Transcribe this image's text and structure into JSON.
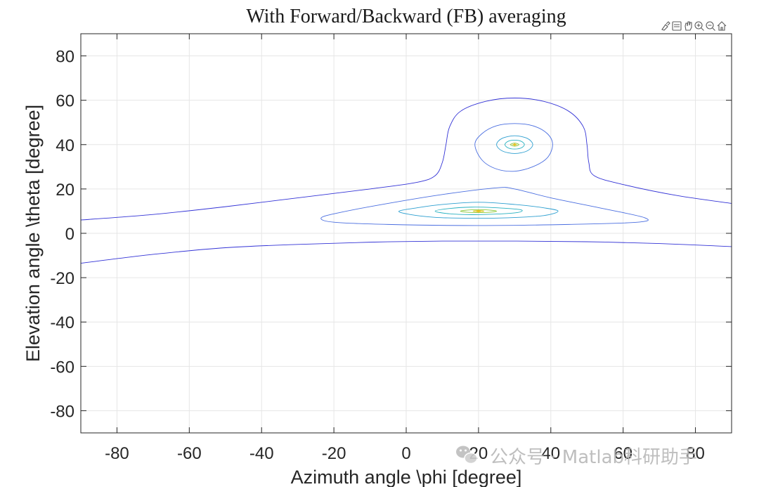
{
  "chart_data": {
    "type": "contour",
    "title": "With Forward/Backward (FB) averaging",
    "xlabel": "Azimuth angle \\phi [degree]",
    "ylabel": "Elevation angle \\theta [degree]",
    "xlim": [
      -90,
      90
    ],
    "ylim": [
      -90,
      90
    ],
    "xticks": [
      -80,
      -60,
      -40,
      -20,
      0,
      20,
      40,
      60,
      80
    ],
    "yticks": [
      -80,
      -60,
      -40,
      -20,
      0,
      20,
      40,
      60,
      80
    ],
    "grid": true,
    "peaks": [
      {
        "azimuth": 20,
        "elevation": 10
      },
      {
        "azimuth": 30,
        "elevation": 40
      }
    ],
    "contours": [
      {
        "level": "outer-upper",
        "color": "#3333d6",
        "points": [
          [
            -90,
            6
          ],
          [
            -70,
            8.5
          ],
          [
            -50,
            12
          ],
          [
            -30,
            16
          ],
          [
            -10,
            20
          ],
          [
            3,
            23
          ],
          [
            8,
            26
          ],
          [
            10,
            32
          ],
          [
            11,
            40
          ],
          [
            12,
            48
          ],
          [
            15,
            55
          ],
          [
            22,
            59.5
          ],
          [
            30,
            61
          ],
          [
            38,
            59.5
          ],
          [
            45,
            55
          ],
          [
            49,
            48
          ],
          [
            50,
            40
          ],
          [
            50.5,
            32
          ],
          [
            52,
            26
          ],
          [
            60,
            22
          ],
          [
            75,
            17
          ],
          [
            90,
            13.5
          ]
        ]
      },
      {
        "level": "outer-lower",
        "color": "#3333d6",
        "points": [
          [
            -90,
            -13.5
          ],
          [
            -70,
            -9.5
          ],
          [
            -50,
            -6.5
          ],
          [
            -30,
            -5
          ],
          [
            -10,
            -4
          ],
          [
            10,
            -3.5
          ],
          [
            30,
            -3.5
          ],
          [
            50,
            -3.8
          ],
          [
            70,
            -4.6
          ],
          [
            90,
            -6
          ]
        ]
      },
      {
        "level": "ring1",
        "color": "#4a6ee0",
        "closed": true,
        "points": [
          [
            -23.5,
            7
          ],
          [
            -18,
            9.5
          ],
          [
            -5,
            13.5
          ],
          [
            10,
            17.5
          ],
          [
            25,
            20.5
          ],
          [
            30,
            20
          ],
          [
            40,
            16
          ],
          [
            55,
            11
          ],
          [
            66,
            7
          ],
          [
            64,
            5
          ],
          [
            45,
            4
          ],
          [
            20,
            3.5
          ],
          [
            -5,
            4
          ],
          [
            -20,
            5
          ]
        ]
      },
      {
        "level": "ring2",
        "color": "#2d9fd0",
        "closed": true,
        "points": [
          [
            -2,
            10
          ],
          [
            3,
            11.5
          ],
          [
            10,
            13
          ],
          [
            20,
            14
          ],
          [
            30,
            13
          ],
          [
            38,
            11.5
          ],
          [
            42,
            10
          ],
          [
            38,
            8
          ],
          [
            28,
            7
          ],
          [
            18,
            6.8
          ],
          [
            8,
            7.2
          ],
          [
            1,
            8.5
          ]
        ]
      },
      {
        "level": "ring3",
        "color": "#26b0c0",
        "closed": true,
        "points": [
          [
            8,
            10
          ],
          [
            12,
            11.2
          ],
          [
            18,
            11.8
          ],
          [
            24,
            11.6
          ],
          [
            31,
            10.8
          ],
          [
            32,
            10
          ],
          [
            30,
            9.2
          ],
          [
            24,
            8.6
          ],
          [
            18,
            8.4
          ],
          [
            12,
            8.8
          ]
        ]
      },
      {
        "level": "ring4",
        "color": "#8cc83c",
        "closed": true,
        "points": [
          [
            15,
            10
          ],
          [
            18,
            10.6
          ],
          [
            22,
            10.6
          ],
          [
            25,
            10
          ],
          [
            22,
            9.4
          ],
          [
            18,
            9.4
          ]
        ]
      },
      {
        "level": "ring5",
        "color": "#dcc81e",
        "closed": true,
        "points": [
          [
            18.5,
            10
          ],
          [
            20,
            10.3
          ],
          [
            21.5,
            10
          ],
          [
            20,
            9.7
          ]
        ]
      },
      {
        "level": "upper-ring1",
        "color": "#4a6ee0",
        "closed": true,
        "points": [
          [
            19,
            40
          ],
          [
            21,
            45
          ],
          [
            25,
            48.5
          ],
          [
            30,
            49.5
          ],
          [
            35,
            48.5
          ],
          [
            39,
            45
          ],
          [
            40.5,
            40
          ],
          [
            39,
            34
          ],
          [
            35,
            30
          ],
          [
            30,
            28
          ],
          [
            25,
            29
          ],
          [
            21,
            33
          ]
        ]
      },
      {
        "level": "upper-ring2",
        "color": "#2d9fd0",
        "closed": true,
        "points": [
          [
            25,
            40
          ],
          [
            26.5,
            42.8
          ],
          [
            30,
            44
          ],
          [
            33.5,
            42.8
          ],
          [
            35,
            40
          ],
          [
            33.5,
            37.2
          ],
          [
            30,
            36
          ],
          [
            26.5,
            37.2
          ]
        ]
      },
      {
        "level": "upper-ring3",
        "color": "#26b0c0",
        "closed": true,
        "points": [
          [
            27.3,
            40
          ],
          [
            28.2,
            41.5
          ],
          [
            30,
            42
          ],
          [
            31.8,
            41.5
          ],
          [
            32.7,
            40
          ],
          [
            31.8,
            38.5
          ],
          [
            30,
            38
          ],
          [
            28.2,
            38.5
          ]
        ]
      },
      {
        "level": "upper-ring4",
        "color": "#8cc83c",
        "closed": true,
        "points": [
          [
            28.8,
            40
          ],
          [
            30,
            40.7
          ],
          [
            31.2,
            40
          ],
          [
            30,
            39.3
          ]
        ]
      },
      {
        "level": "upper-ring5",
        "color": "#dcc81e",
        "closed": true,
        "points": [
          [
            29.6,
            40
          ],
          [
            30,
            40.25
          ],
          [
            30.4,
            40
          ],
          [
            30,
            39.75
          ]
        ]
      }
    ]
  },
  "toolbar": {
    "icons": [
      "brush-icon",
      "datatip-icon",
      "pan-icon",
      "zoom-in-icon",
      "zoom-out-icon",
      "home-icon"
    ]
  },
  "watermark": {
    "text": "公众号 · Matlab科研助手"
  }
}
